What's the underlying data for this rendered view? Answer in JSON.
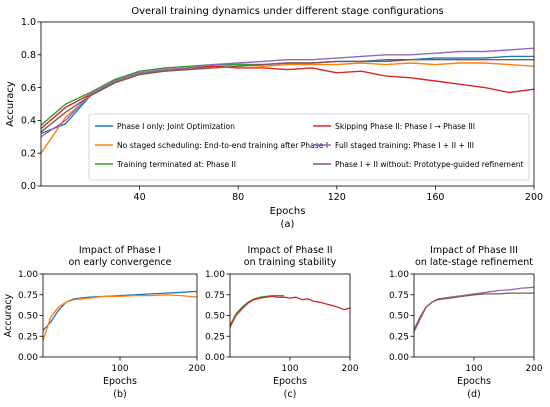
{
  "chart_data": [
    {
      "type": "line",
      "title": "Overall training dynamics under different stage configurations",
      "xlabel": "Epochs",
      "ylabel": "Accuracy",
      "caption": "(a)",
      "xlim": [
        0,
        200
      ],
      "ylim": [
        0.0,
        1.0
      ],
      "xticks": [
        40,
        80,
        120,
        160,
        200
      ],
      "yticks": [
        0.0,
        0.2,
        0.4,
        0.6,
        0.8,
        1.0
      ],
      "grid": false,
      "legend": "bottom",
      "series": [
        {
          "name": "Phase I only: Joint Optimization",
          "color": "#1f77b4",
          "x": [
            0,
            10,
            20,
            30,
            40,
            50,
            60,
            70,
            80,
            90,
            100,
            110,
            120,
            130,
            140,
            150,
            160,
            170,
            180,
            190,
            200
          ],
          "values": [
            0.32,
            0.38,
            0.55,
            0.64,
            0.69,
            0.7,
            0.72,
            0.73,
            0.74,
            0.74,
            0.75,
            0.75,
            0.76,
            0.76,
            0.77,
            0.77,
            0.78,
            0.78,
            0.78,
            0.79,
            0.79
          ]
        },
        {
          "name": "No staged scheduling: End-to-end training after Phase I",
          "color": "#ff7f0e",
          "x": [
            0,
            10,
            20,
            30,
            40,
            50,
            60,
            70,
            80,
            90,
            100,
            110,
            120,
            130,
            140,
            150,
            160,
            170,
            180,
            190,
            200
          ],
          "values": [
            0.2,
            0.42,
            0.55,
            0.63,
            0.68,
            0.7,
            0.71,
            0.73,
            0.74,
            0.73,
            0.74,
            0.74,
            0.74,
            0.75,
            0.74,
            0.75,
            0.74,
            0.75,
            0.75,
            0.74,
            0.73
          ]
        },
        {
          "name": "Training terminated at: Phase II",
          "color": "#2ca02c",
          "x": [
            0,
            10,
            20,
            30,
            40,
            50,
            60,
            70,
            80,
            90
          ],
          "values": [
            0.37,
            0.5,
            0.57,
            0.65,
            0.7,
            0.72,
            0.73,
            0.74,
            0.74,
            0.74
          ]
        },
        {
          "name": "Skipping Phase II: Phase I → Phase III",
          "color": "#d62728",
          "x": [
            0,
            10,
            20,
            30,
            40,
            50,
            60,
            70,
            80,
            90,
            100,
            110,
            120,
            130,
            140,
            150,
            160,
            170,
            180,
            190,
            200
          ],
          "values": [
            0.35,
            0.48,
            0.56,
            0.64,
            0.69,
            0.71,
            0.72,
            0.73,
            0.72,
            0.72,
            0.71,
            0.72,
            0.69,
            0.7,
            0.67,
            0.66,
            0.64,
            0.62,
            0.6,
            0.57,
            0.59
          ]
        },
        {
          "name": "Full staged training: Phase I + II + III",
          "color": "#9467bd",
          "x": [
            0,
            10,
            20,
            30,
            40,
            50,
            60,
            70,
            80,
            90,
            100,
            110,
            120,
            130,
            140,
            150,
            160,
            170,
            180,
            190,
            200
          ],
          "values": [
            0.3,
            0.4,
            0.56,
            0.64,
            0.69,
            0.71,
            0.72,
            0.74,
            0.75,
            0.76,
            0.77,
            0.77,
            0.78,
            0.79,
            0.8,
            0.8,
            0.81,
            0.82,
            0.82,
            0.83,
            0.84
          ]
        },
        {
          "name": "Phase I + II without: Prototype-guided refinement",
          "color": "#8c564b",
          "x": [
            0,
            10,
            20,
            30,
            40,
            50,
            60,
            70,
            80,
            90,
            100,
            110,
            120,
            130,
            140,
            150,
            160,
            170,
            180,
            190,
            200
          ],
          "values": [
            0.33,
            0.45,
            0.55,
            0.63,
            0.68,
            0.7,
            0.71,
            0.72,
            0.73,
            0.74,
            0.75,
            0.75,
            0.76,
            0.76,
            0.76,
            0.77,
            0.77,
            0.77,
            0.77,
            0.77,
            0.77
          ]
        }
      ]
    },
    {
      "type": "line",
      "title": [
        "Impact of Phase I",
        "on early convergence"
      ],
      "xlabel": "Epochs",
      "ylabel": "Accuracy",
      "caption": "(b)",
      "xlim": [
        0,
        200
      ],
      "ylim": [
        0.0,
        1.0
      ],
      "xticks": [
        100,
        200
      ],
      "yticks": [
        0.0,
        0.25,
        0.5,
        0.75,
        1.0
      ],
      "series": [
        {
          "color": "#1f77b4",
          "x": [
            0,
            10,
            20,
            30,
            40,
            60,
            80,
            100,
            120,
            140,
            160,
            180,
            200
          ],
          "values": [
            0.32,
            0.42,
            0.56,
            0.66,
            0.7,
            0.72,
            0.73,
            0.74,
            0.75,
            0.76,
            0.77,
            0.78,
            0.79
          ]
        },
        {
          "color": "#ff7f0e",
          "x": [
            0,
            10,
            20,
            30,
            40,
            60,
            80,
            100,
            120,
            140,
            160,
            180,
            200
          ],
          "values": [
            0.2,
            0.48,
            0.6,
            0.66,
            0.69,
            0.71,
            0.73,
            0.73,
            0.74,
            0.74,
            0.75,
            0.74,
            0.72
          ]
        }
      ]
    },
    {
      "type": "line",
      "title": [
        "Impact of Phase II",
        "on training stability"
      ],
      "xlabel": "Epochs",
      "ylabel": "",
      "caption": "(c)",
      "xlim": [
        0,
        200
      ],
      "ylim": [
        0.0,
        1.0
      ],
      "xticks": [
        100,
        200
      ],
      "yticks": [
        0.0,
        0.25,
        0.5,
        0.75,
        1.0
      ],
      "series": [
        {
          "color": "#2ca02c",
          "x": [
            0,
            10,
            20,
            30,
            40,
            50,
            60,
            70,
            80,
            90
          ],
          "values": [
            0.38,
            0.52,
            0.6,
            0.66,
            0.7,
            0.72,
            0.73,
            0.74,
            0.74,
            0.74
          ]
        },
        {
          "color": "#d62728",
          "x": [
            0,
            10,
            20,
            30,
            40,
            50,
            60,
            70,
            80,
            90,
            100,
            110,
            120,
            130,
            140,
            150,
            160,
            170,
            180,
            190,
            200
          ],
          "values": [
            0.36,
            0.5,
            0.58,
            0.65,
            0.69,
            0.71,
            0.72,
            0.73,
            0.72,
            0.72,
            0.71,
            0.72,
            0.69,
            0.7,
            0.67,
            0.66,
            0.64,
            0.62,
            0.6,
            0.57,
            0.59
          ]
        }
      ]
    },
    {
      "type": "line",
      "title": [
        "Impact of Phase III",
        "on late-stage refinement"
      ],
      "xlabel": "Epochs",
      "ylabel": "",
      "caption": "(d)",
      "xlim": [
        0,
        200
      ],
      "ylim": [
        0.0,
        1.0
      ],
      "xticks": [
        100,
        200
      ],
      "yticks": [
        0.0,
        0.25,
        0.5,
        0.75,
        1.0
      ],
      "series": [
        {
          "color": "#9467bd",
          "x": [
            0,
            10,
            20,
            30,
            40,
            60,
            80,
            100,
            120,
            140,
            160,
            180,
            200
          ],
          "values": [
            0.3,
            0.45,
            0.6,
            0.66,
            0.7,
            0.72,
            0.74,
            0.76,
            0.78,
            0.8,
            0.81,
            0.83,
            0.84
          ]
        },
        {
          "color": "#8c564b",
          "x": [
            0,
            10,
            20,
            30,
            40,
            60,
            80,
            100,
            120,
            140,
            160,
            180,
            200
          ],
          "values": [
            0.33,
            0.48,
            0.6,
            0.66,
            0.69,
            0.71,
            0.73,
            0.75,
            0.76,
            0.76,
            0.77,
            0.77,
            0.77
          ]
        }
      ]
    }
  ]
}
